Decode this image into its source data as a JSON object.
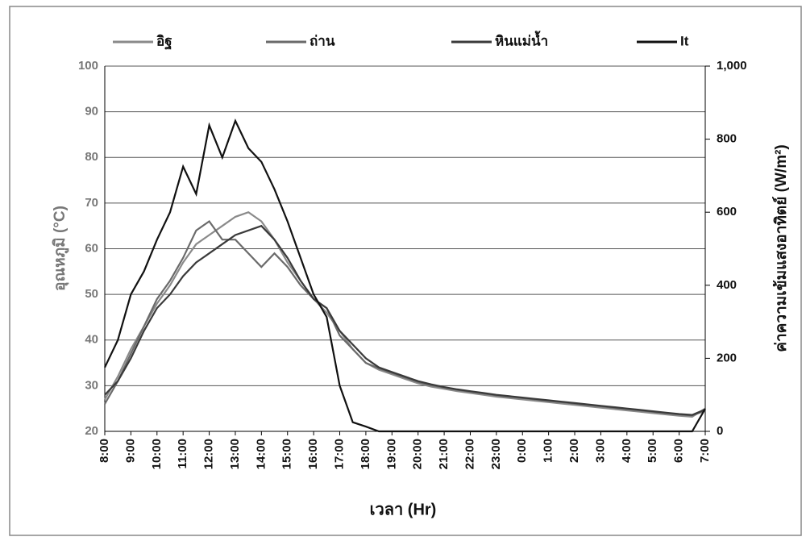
{
  "chart_data": {
    "type": "line",
    "x_label": "เวลา (Hr)",
    "y_label": "อุณหภูมิ (°C)",
    "y2_label": "ค่าความเข้มแสงอาทิตย์ (W/m²)",
    "xlim": [
      0,
      23
    ],
    "xticks": [
      {
        "value": 0,
        "label": "8:00"
      },
      {
        "value": 1,
        "label": "9:00"
      },
      {
        "value": 2,
        "label": "10:00"
      },
      {
        "value": 3,
        "label": "11:00"
      },
      {
        "value": 4,
        "label": "12:00"
      },
      {
        "value": 5,
        "label": "13:00"
      },
      {
        "value": 6,
        "label": "14:00"
      },
      {
        "value": 7,
        "label": "15:00"
      },
      {
        "value": 8,
        "label": "16:00"
      },
      {
        "value": 9,
        "label": "17:00"
      },
      {
        "value": 10,
        "label": "18:00"
      },
      {
        "value": 11,
        "label": "19:00"
      },
      {
        "value": 12,
        "label": "20:00"
      },
      {
        "value": 13,
        "label": "21:00"
      },
      {
        "value": 14,
        "label": "22:00"
      },
      {
        "value": 15,
        "label": "23:00"
      },
      {
        "value": 16,
        "label": "0:00"
      },
      {
        "value": 17,
        "label": "1:00"
      },
      {
        "value": 18,
        "label": "2:00"
      },
      {
        "value": 19,
        "label": "3:00"
      },
      {
        "value": 20,
        "label": "4:00"
      },
      {
        "value": 21,
        "label": "5:00"
      },
      {
        "value": 22,
        "label": "6:00"
      },
      {
        "value": 23,
        "label": "7:00"
      }
    ],
    "ylim": [
      20,
      100
    ],
    "yticks": [
      20,
      30,
      40,
      50,
      60,
      70,
      80,
      90,
      100
    ],
    "y2lim": [
      0,
      1000
    ],
    "y2ticks": [
      0,
      200,
      400,
      600,
      800,
      {
        "value": 1000,
        "label": "1,000"
      }
    ],
    "grid": true,
    "x": [
      0,
      0.5,
      1,
      1.5,
      2,
      2.5,
      3,
      3.5,
      4,
      4.5,
      5,
      5.5,
      6,
      6.5,
      7,
      7.5,
      8,
      8.5,
      9,
      9.5,
      10,
      10.5,
      11,
      11.5,
      12,
      12.5,
      13,
      13.5,
      14,
      14.5,
      15,
      15.5,
      16,
      16.5,
      17,
      17.5,
      18,
      18.5,
      19,
      19.5,
      20,
      20.5,
      21,
      21.5,
      22,
      22.5,
      23
    ],
    "series": [
      {
        "name": "อิฐ",
        "color": "#8a8a8a",
        "values": [
          27,
          32,
          38,
          43,
          48,
          52,
          57,
          61,
          63,
          65,
          67,
          68,
          66,
          62,
          57,
          53,
          49,
          46,
          42,
          38,
          35,
          33.5,
          32.5,
          31.5,
          30.5,
          29.8,
          29.3,
          28.8,
          28.4,
          28,
          27.6,
          27.3,
          27,
          26.7,
          26.4,
          26.1,
          25.8,
          25.5,
          25.2,
          24.9,
          24.6,
          24.3,
          24,
          23.7,
          23.4,
          23.2,
          25
        ]
      },
      {
        "name": "ถ่าน",
        "color": "#6a6a6a",
        "values": [
          26,
          31,
          37,
          43,
          49,
          53,
          58,
          64,
          66,
          62,
          62,
          59,
          56,
          59,
          56,
          52,
          49,
          47,
          41,
          38,
          35,
          33.8,
          32.8,
          31.8,
          30.8,
          30.1,
          29.6,
          29.1,
          28.7,
          28.3,
          27.9,
          27.6,
          27.3,
          27,
          26.7,
          26.4,
          26.1,
          25.8,
          25.5,
          25.2,
          24.9,
          24.6,
          24.3,
          24,
          23.7,
          23.5,
          24.5
        ]
      },
      {
        "name": "หินแม่น้ำ",
        "color": "#3a3a3a",
        "values": [
          28,
          31,
          36,
          42,
          47,
          50,
          54,
          57,
          59,
          61,
          63,
          64,
          65,
          62,
          58,
          53,
          49,
          47,
          42,
          39,
          36,
          34,
          33,
          32,
          31,
          30.3,
          29.7,
          29.2,
          28.8,
          28.4,
          28,
          27.7,
          27.4,
          27.1,
          26.8,
          26.5,
          26.2,
          25.9,
          25.6,
          25.3,
          25,
          24.7,
          24.4,
          24.1,
          23.8,
          23.6,
          24.8
        ]
      },
      {
        "name": "It",
        "color": "#111111",
        "axis": "y2",
        "values": [
          175,
          250,
          375,
          438,
          525,
          600,
          725,
          650,
          838,
          750,
          850,
          775,
          738,
          663,
          575,
          475,
          375,
          313,
          125,
          25,
          13,
          0,
          0,
          0,
          0,
          0,
          0,
          0,
          0,
          0,
          0,
          0,
          0,
          0,
          0,
          0,
          0,
          0,
          0,
          0,
          0,
          0,
          0,
          0,
          0,
          0,
          62
        ]
      }
    ]
  }
}
